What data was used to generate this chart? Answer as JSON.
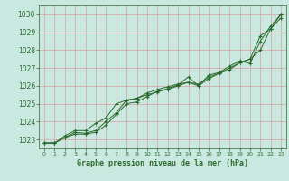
{
  "title": "Graphe pression niveau de la mer (hPa)",
  "background_color": "#c8e8e0",
  "grid_color": "#d9a0a0",
  "line_color": "#2d6a2d",
  "text_color": "#2d6a2d",
  "xlim": [
    -0.5,
    23.5
  ],
  "ylim": [
    1022.5,
    1030.5
  ],
  "yticks": [
    1023,
    1024,
    1025,
    1026,
    1027,
    1028,
    1029,
    1030
  ],
  "xticks": [
    0,
    1,
    2,
    3,
    4,
    5,
    6,
    7,
    8,
    9,
    10,
    11,
    12,
    13,
    14,
    15,
    16,
    17,
    18,
    19,
    20,
    21,
    22,
    23
  ],
  "series": [
    [
      1022.8,
      1022.8,
      1023.1,
      1023.4,
      1023.35,
      1023.5,
      1024.0,
      1024.5,
      1025.2,
      1025.3,
      1025.6,
      1025.8,
      1025.95,
      1026.1,
      1026.2,
      1026.1,
      1026.5,
      1026.7,
      1027.0,
      1027.3,
      1027.5,
      1028.0,
      1029.2,
      1030.0
    ],
    [
      1022.8,
      1022.8,
      1023.2,
      1023.5,
      1023.5,
      1023.9,
      1024.2,
      1025.0,
      1025.2,
      1025.3,
      1025.5,
      1025.65,
      1025.85,
      1026.05,
      1026.5,
      1026.0,
      1026.6,
      1026.75,
      1027.1,
      1027.4,
      1027.25,
      1028.5,
      1029.35,
      1030.0
    ],
    [
      1022.8,
      1022.8,
      1023.1,
      1023.3,
      1023.3,
      1023.4,
      1023.8,
      1024.4,
      1025.0,
      1025.1,
      1025.4,
      1025.7,
      1025.8,
      1026.0,
      1026.2,
      1026.0,
      1026.4,
      1026.7,
      1026.9,
      1027.3,
      1027.5,
      1028.8,
      1029.2,
      1029.8
    ]
  ]
}
